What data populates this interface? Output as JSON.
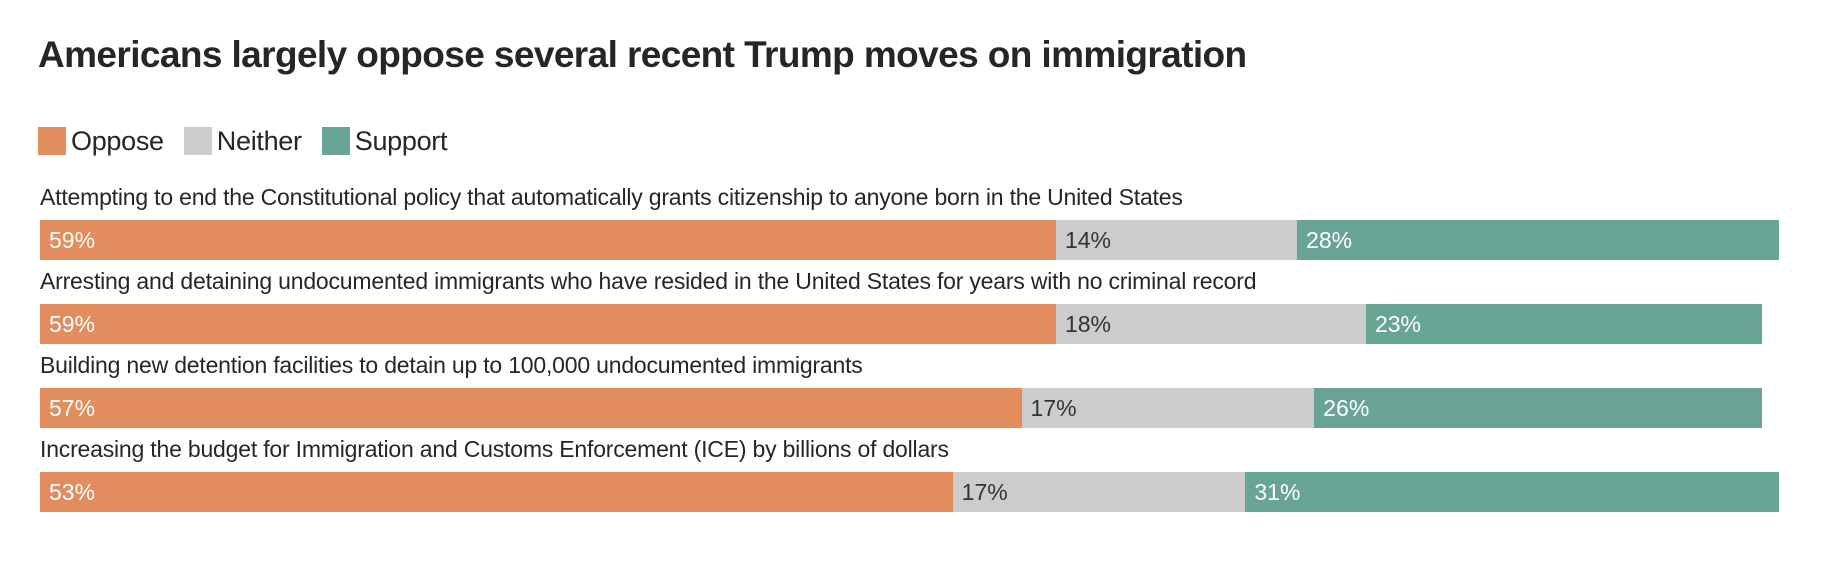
{
  "chart_data": {
    "type": "bar",
    "orientation": "horizontal",
    "stacked": true,
    "title": "Americans largely oppose several recent Trump moves on immigration",
    "xlabel": "",
    "ylabel": "",
    "xlim": [
      0,
      100
    ],
    "grid": false,
    "legend_position": "top-left",
    "categories": [
      "Attempting to end the Constitutional policy that automatically grants citizenship to anyone born in the United States",
      "Arresting and detaining undocumented immigrants who have resided in the United States for years with no criminal record",
      "Building new detention facilities to detain up to 100,000 undocumented immigrants",
      "Increasing the budget for Immigration and Customs Enforcement (ICE) by billions of dollars"
    ],
    "series": [
      {
        "name": "Oppose",
        "color": "#E38D5E",
        "label_color": "#ffffff",
        "values": [
          59,
          59,
          57,
          53
        ]
      },
      {
        "name": "Neither",
        "color": "#CCCCCC",
        "label_color": "#333333",
        "values": [
          14,
          18,
          17,
          17
        ]
      },
      {
        "name": "Support",
        "color": "#68A595",
        "label_color": "#ffffff",
        "values": [
          28,
          23,
          26,
          31
        ]
      }
    ],
    "value_suffix": "%"
  }
}
